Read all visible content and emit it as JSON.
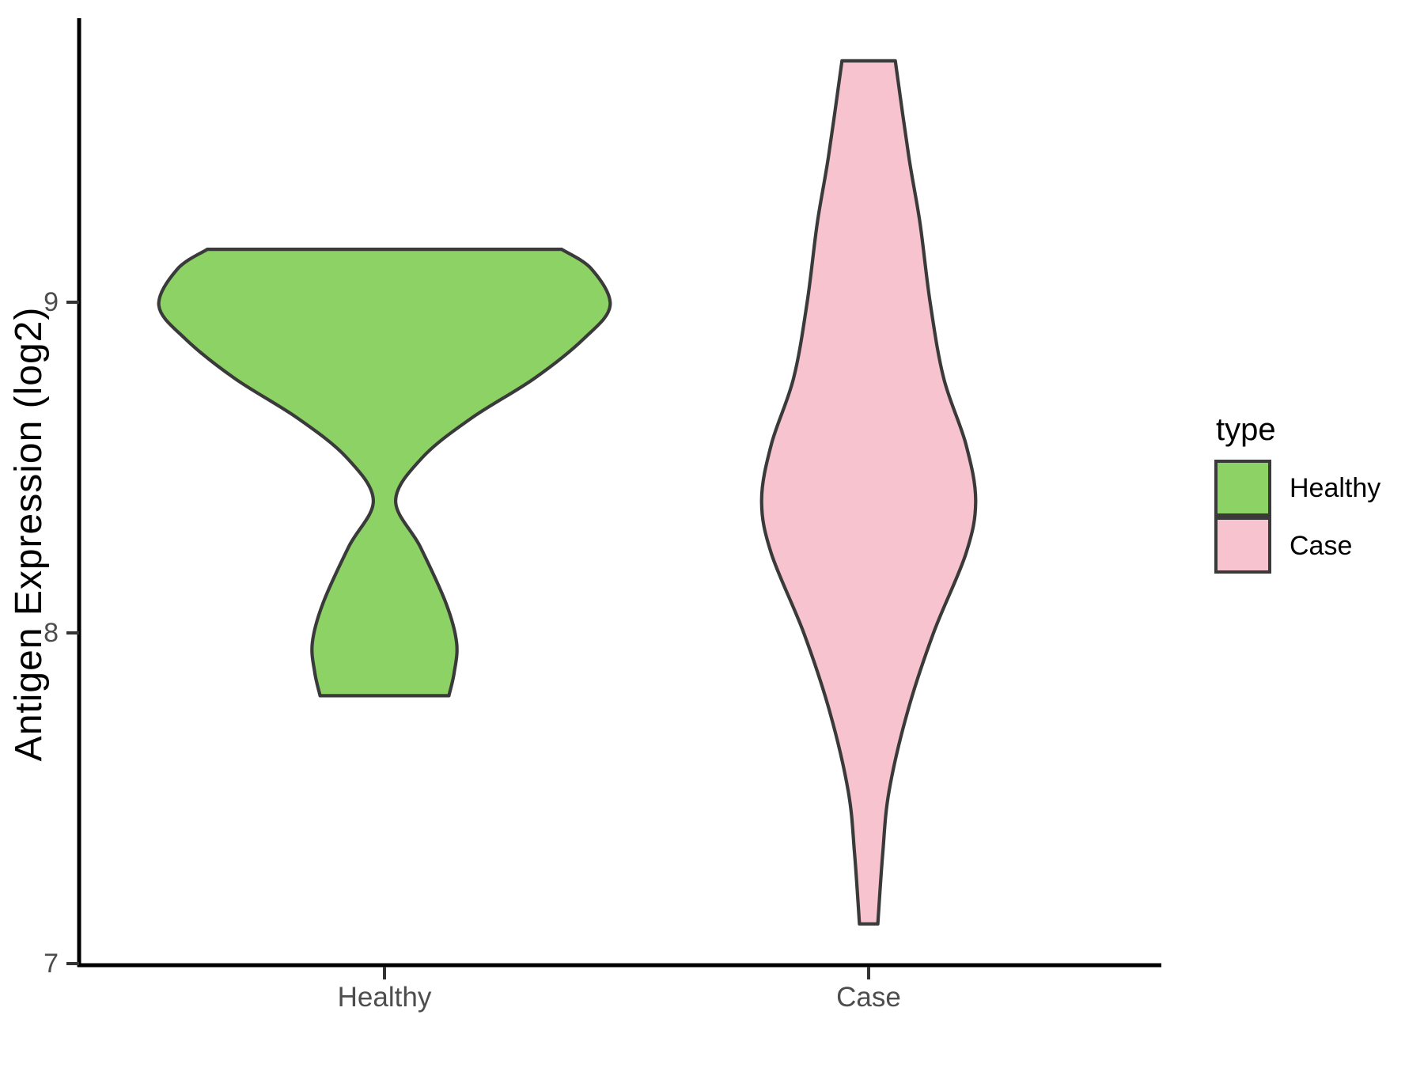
{
  "chart_data": {
    "type": "violin",
    "title": "",
    "xlabel": "",
    "ylabel": "Antigen Expression (log2)",
    "categories": [
      "Healthy",
      "Case"
    ],
    "y_ticks": [
      7,
      8,
      9
    ],
    "y_tick_labels": [
      "9",
      "8",
      "7"
    ],
    "y_axis_range": [
      7,
      9.87
    ],
    "grid": "off",
    "legend": {
      "title": "type",
      "position": "right",
      "entries": [
        {
          "label": "Healthy",
          "color": "#8DD264"
        },
        {
          "label": "Case",
          "color": "#F6C3CF"
        }
      ]
    },
    "outline_color": "#3A3A3A",
    "series": [
      {
        "name": "Healthy",
        "color": "#8DD264",
        "data_min": 7.81,
        "data_max": 9.16,
        "widest_at": 9.0,
        "profile": [
          [
            9.16,
            0.366
          ],
          [
            9.1,
            0.428
          ],
          [
            8.99,
            0.466
          ],
          [
            8.89,
            0.412
          ],
          [
            8.77,
            0.31
          ],
          [
            8.65,
            0.18
          ],
          [
            8.53,
            0.078
          ],
          [
            8.4,
            0.023
          ],
          [
            8.26,
            0.074
          ],
          [
            8.09,
            0.127
          ],
          [
            7.97,
            0.149
          ],
          [
            7.88,
            0.144
          ],
          [
            7.81,
            0.133
          ]
        ]
      },
      {
        "name": "Case",
        "color": "#F6C3CF",
        "data_min": 7.12,
        "data_max": 9.73,
        "widest_at": 8.4,
        "profile": [
          [
            9.73,
            0.055
          ],
          [
            9.44,
            0.083
          ],
          [
            9.24,
            0.106
          ],
          [
            9.0,
            0.127
          ],
          [
            8.77,
            0.155
          ],
          [
            8.57,
            0.201
          ],
          [
            8.4,
            0.221
          ],
          [
            8.24,
            0.201
          ],
          [
            8.0,
            0.134
          ],
          [
            7.76,
            0.08
          ],
          [
            7.52,
            0.042
          ],
          [
            7.33,
            0.029
          ],
          [
            7.12,
            0.019
          ]
        ]
      }
    ]
  }
}
